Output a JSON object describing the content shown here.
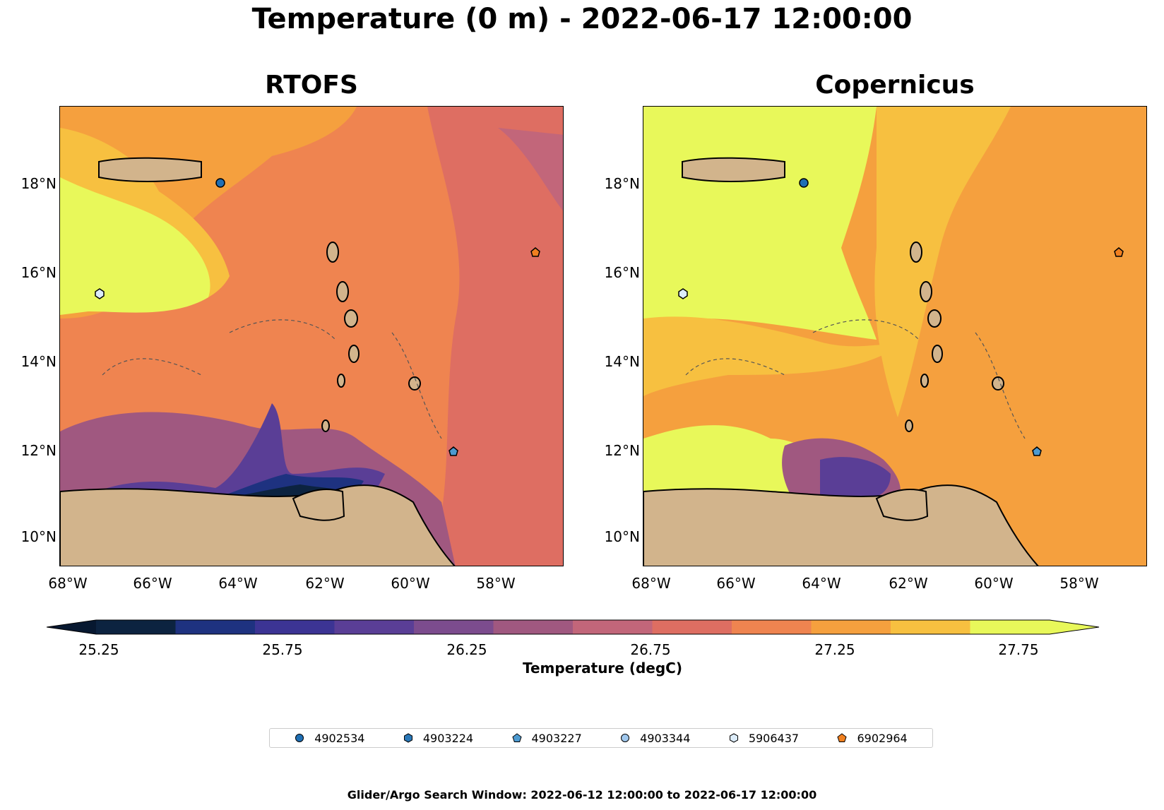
{
  "title": "Temperature (0 m) - 2022-06-17 12:00:00",
  "panels": [
    {
      "title": "RTOFS"
    },
    {
      "title": "Copernicus"
    }
  ],
  "axes": {
    "lat_labels": [
      "18°N",
      "16°N",
      "14°N",
      "12°N",
      "10°N"
    ],
    "lon_labels": [
      "68°W",
      "66°W",
      "64°W",
      "62°W",
      "60°W",
      "58°W"
    ],
    "lat_range": [
      9.3,
      19.8
    ],
    "lon_range": [
      -68.2,
      -56.6
    ]
  },
  "colorbar": {
    "title": "Temperature (degC)",
    "tick_labels": [
      "25.25",
      "25.75",
      "26.25",
      "26.75",
      "27.25",
      "27.75"
    ],
    "colors": [
      "#0c2340",
      "#1e3280",
      "#3c3494",
      "#5a3e96",
      "#7c4c8e",
      "#a05880",
      "#c2667a",
      "#de6e62",
      "#ef8450",
      "#f5a03e",
      "#f7c040",
      "#e8f85a"
    ],
    "under_color": "#071830",
    "over_color": "#e8f85a"
  },
  "legend": [
    {
      "id": "4902534",
      "marker": "circle",
      "color": "#1f6fb4"
    },
    {
      "id": "4903224",
      "marker": "hexagon",
      "color": "#2a78b8"
    },
    {
      "id": "4903227",
      "marker": "pentagon",
      "color": "#4d9ad0"
    },
    {
      "id": "4903344",
      "marker": "circle",
      "color": "#a0c8ee"
    },
    {
      "id": "5906437",
      "marker": "hexagon",
      "color": "#dcecfa"
    },
    {
      "id": "6902964",
      "marker": "pentagon",
      "color": "#f08020"
    }
  ],
  "footer": "Glider/Argo Search Window: 2022-06-12 12:00:00 to 2022-06-17 12:00:00"
}
